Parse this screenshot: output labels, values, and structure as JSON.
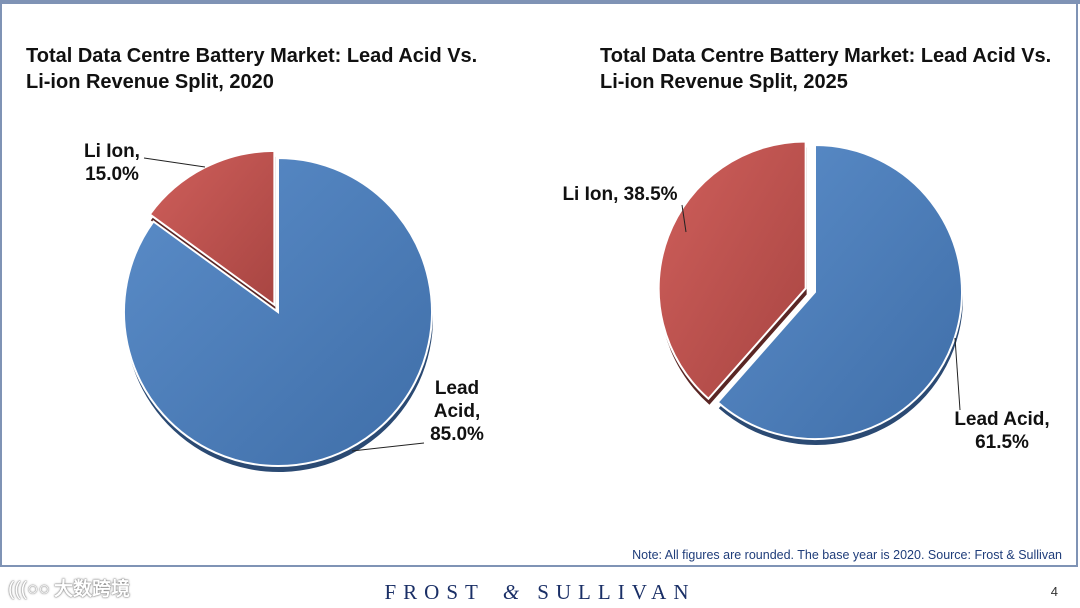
{
  "chart_data": [
    {
      "type": "pie",
      "title": "Total Data Centre Battery Market: Lead Acid Vs. Li-ion Revenue Split, 2020",
      "title_lines": [
        "Total Data Centre Battery Market: Lead Acid Vs.",
        "Li-ion Revenue Split, 2020"
      ],
      "slices": [
        {
          "name": "Li Ion",
          "value": 15.0,
          "label_lines": [
            "Li Ion,",
            "15.0%"
          ],
          "color": "#c0504d"
        },
        {
          "name": "Lead Acid",
          "value": 85.0,
          "label_lines": [
            "Lead",
            "Acid,",
            "85.0%"
          ],
          "color": "#4f81bd"
        }
      ]
    },
    {
      "type": "pie",
      "title": "Total Data Centre Battery Market: Lead Acid Vs. Li-ion Revenue Split, 2025",
      "title_lines": [
        "Total Data Centre Battery Market: Lead Acid Vs.",
        "Li-ion Revenue Split, 2025"
      ],
      "slices": [
        {
          "name": "Li Ion",
          "value": 38.5,
          "label_lines": [
            "Li Ion, 38.5%"
          ],
          "color": "#c0504d"
        },
        {
          "name": "Lead Acid",
          "value": 61.5,
          "label_lines": [
            "Lead Acid,",
            "61.5%"
          ],
          "color": "#4f81bd"
        }
      ]
    }
  ],
  "note": "Note: All figures are rounded. The base year is 2020. Source: Frost & Sullivan",
  "footer": {
    "brand_left": "FROST",
    "brand_amp": "&",
    "brand_right": "SULLIVAN",
    "page_number": "4"
  },
  "watermark": {
    "icon": "(((○○",
    "text": "大数跨境"
  }
}
